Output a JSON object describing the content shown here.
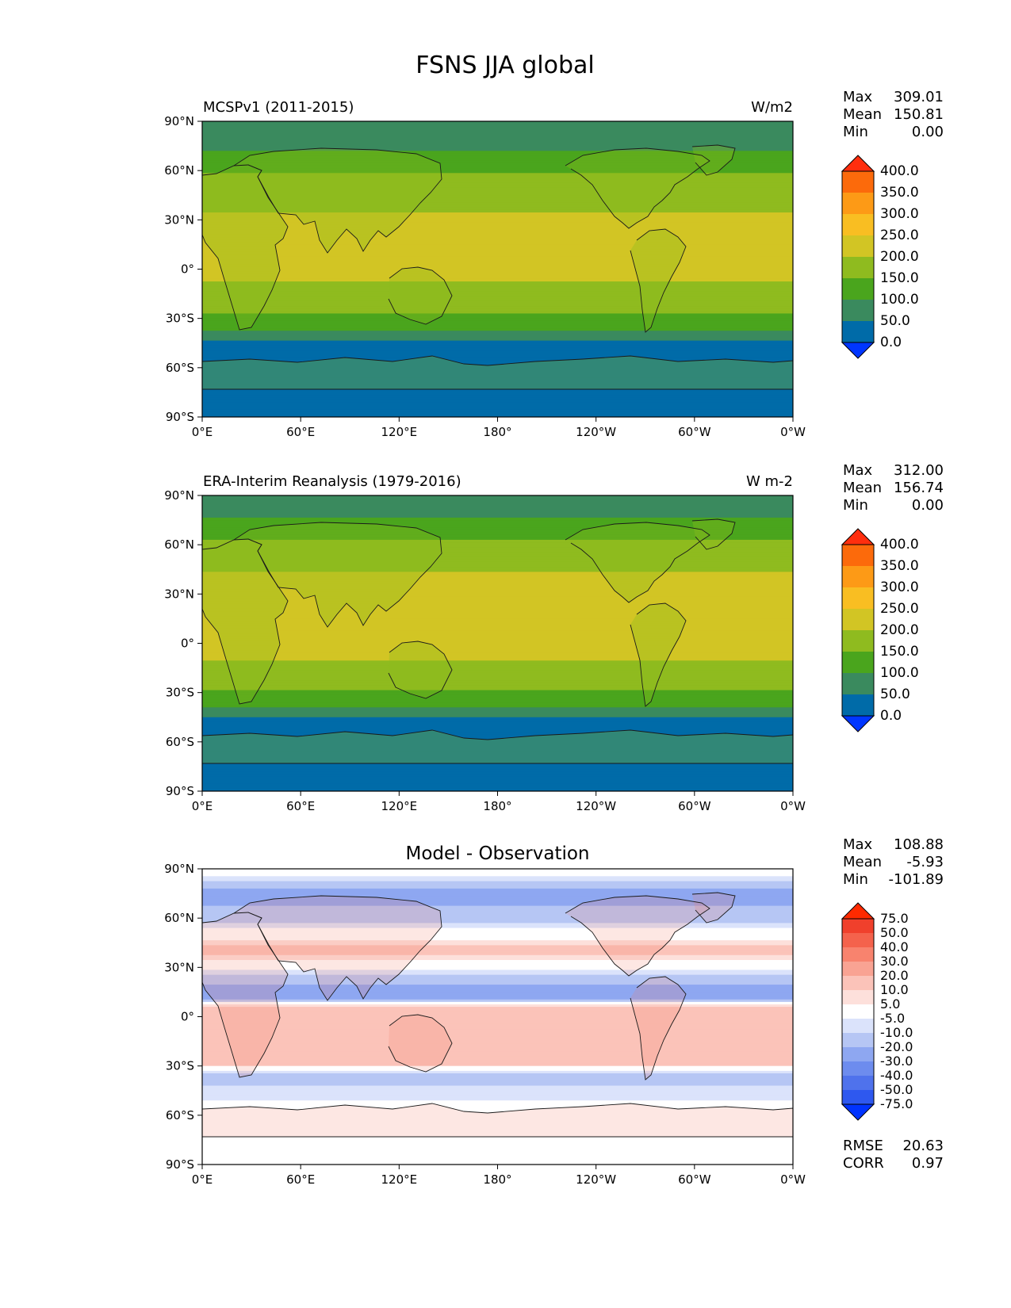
{
  "figure": {
    "title": "FSNS JJA global"
  },
  "axes": {
    "lat_ticks": [
      "90°N",
      "60°N",
      "30°N",
      "0°",
      "30°S",
      "60°S",
      "90°S"
    ],
    "lon_ticks": [
      "0°E",
      "60°E",
      "120°E",
      "180°",
      "120°W",
      "60°W",
      "0°W"
    ]
  },
  "stat_labels": {
    "max": "Max",
    "mean": "Mean",
    "min": "Min",
    "rmse": "RMSE",
    "corr": "CORR"
  },
  "colors": {
    "sequential": [
      "#0036ff",
      "#006ba8",
      "#3a8a5e",
      "#4aa51d",
      "#8fbb1f",
      "#d2c524",
      "#f9be22",
      "#fd9a16",
      "#fc6a0b",
      "#ff2e0e"
    ],
    "diverging": [
      "#0033ff",
      "#2e58ef",
      "#4f72ec",
      "#6d8cee",
      "#8ea7f1",
      "#b6c6f4",
      "#dbe3fb",
      "#ffffff",
      "#fde0db",
      "#fbc3b9",
      "#f9a393",
      "#f8836e",
      "#f4624c",
      "#f0402c",
      "#ff2a00"
    ]
  },
  "chart_data": [
    {
      "type": "heatmap",
      "panel_id": "model",
      "title": "MCSPv1 (2011-2015)",
      "units": "W/m2",
      "stats": {
        "max": "309.01",
        "mean": "150.81",
        "min": "0.00"
      },
      "colorbar_levels": [
        "0.0",
        "50.0",
        "100.0",
        "150.0",
        "200.0",
        "250.0",
        "300.0",
        "350.0",
        "400.0"
      ],
      "xlim": [
        0,
        360
      ],
      "ylim": [
        -90,
        90
      ],
      "zonal_profile": [
        {
          "lat": 90,
          "value": 75
        },
        {
          "lat": 75,
          "value": 75
        },
        {
          "lat": 68,
          "value": 125
        },
        {
          "lat": 50,
          "value": 175
        },
        {
          "lat": 20,
          "value": 225
        },
        {
          "lat": 0,
          "value": 210
        },
        {
          "lat": -15,
          "value": 190
        },
        {
          "lat": -25,
          "value": 160
        },
        {
          "lat": -33,
          "value": 120
        },
        {
          "lat": -42,
          "value": 75
        },
        {
          "lat": -45,
          "value": 40
        },
        {
          "lat": -82,
          "value": 20
        },
        {
          "lat": -85,
          "value": 0
        },
        {
          "lat": -90,
          "value": 0
        }
      ]
    },
    {
      "type": "heatmap",
      "panel_id": "obs",
      "title": "ERA-Interim Reanalysis (1979-2016)",
      "units": "W m-2",
      "stats": {
        "max": "312.00",
        "mean": "156.74",
        "min": "0.00"
      },
      "colorbar_levels": [
        "0.0",
        "50.0",
        "100.0",
        "150.0",
        "200.0",
        "250.0",
        "300.0",
        "350.0",
        "400.0"
      ],
      "xlim": [
        0,
        360
      ],
      "ylim": [
        -90,
        90
      ],
      "zonal_profile": [
        {
          "lat": 90,
          "value": 75
        },
        {
          "lat": 80,
          "value": 80
        },
        {
          "lat": 70,
          "value": 130
        },
        {
          "lat": 50,
          "value": 185
        },
        {
          "lat": 25,
          "value": 240
        },
        {
          "lat": 5,
          "value": 215
        },
        {
          "lat": -15,
          "value": 195
        },
        {
          "lat": -25,
          "value": 165
        },
        {
          "lat": -35,
          "value": 120
        },
        {
          "lat": -44,
          "value": 75
        },
        {
          "lat": -46,
          "value": 40
        },
        {
          "lat": -82,
          "value": 20
        },
        {
          "lat": -85,
          "value": 0
        },
        {
          "lat": -90,
          "value": 0
        }
      ]
    },
    {
      "type": "heatmap",
      "panel_id": "diff",
      "title": "Model - Observation",
      "units": "",
      "stats": {
        "max": "108.88",
        "mean": "-5.93",
        "min": "-101.89"
      },
      "metrics": {
        "rmse": "20.63",
        "corr": "0.97"
      },
      "colorbar_levels": [
        "-75.0",
        "-50.0",
        "-40.0",
        "-30.0",
        "-20.0",
        "-10.0",
        "-5.0",
        "5.0",
        "10.0",
        "20.0",
        "30.0",
        "40.0",
        "50.0",
        "75.0"
      ],
      "xlim": [
        0,
        360
      ],
      "ylim": [
        -90,
        90
      ],
      "zonal_profile": [
        {
          "lat": 88,
          "value": 0
        },
        {
          "lat": 75,
          "value": -25
        },
        {
          "lat": 60,
          "value": -15
        },
        {
          "lat": 40,
          "value": 15
        },
        {
          "lat": 25,
          "value": -12
        },
        {
          "lat": 12,
          "value": -30
        },
        {
          "lat": 5,
          "value": 18
        },
        {
          "lat": -10,
          "value": 12
        },
        {
          "lat": -28,
          "value": 15
        },
        {
          "lat": -35,
          "value": -12
        },
        {
          "lat": -48,
          "value": -8
        },
        {
          "lat": -55,
          "value": 0
        },
        {
          "lat": -90,
          "value": 0
        }
      ]
    }
  ]
}
